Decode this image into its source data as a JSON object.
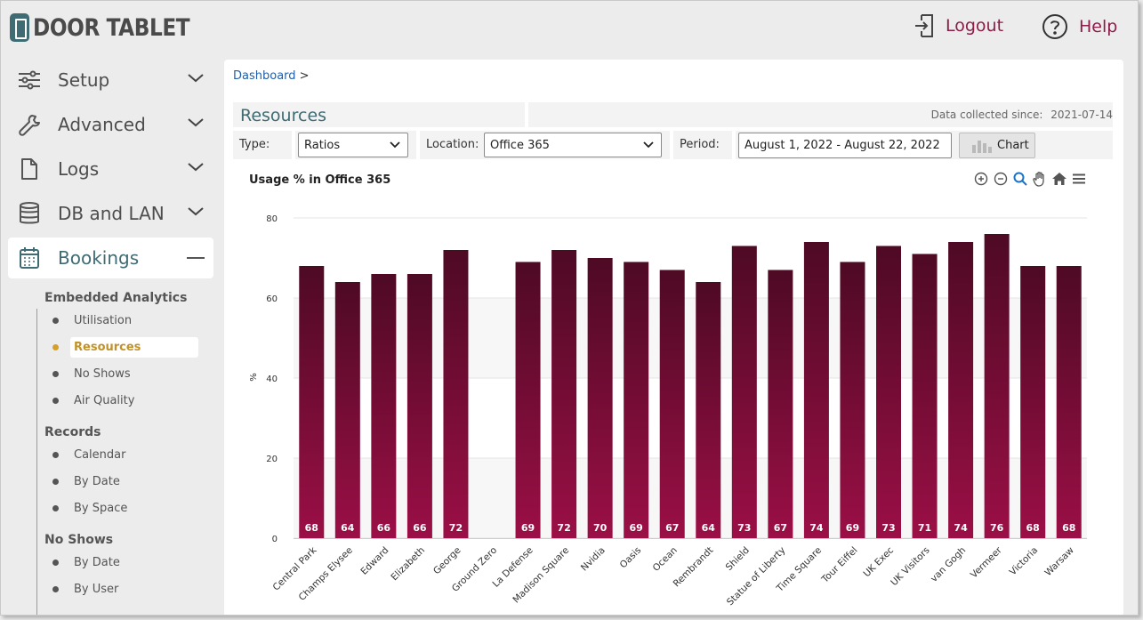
{
  "header": {
    "logo_text": "DOOR TABLET",
    "logout_label": "Logout",
    "help_label": "Help"
  },
  "sidebar": {
    "items": [
      {
        "label": "Setup",
        "icon": "sliders-icon"
      },
      {
        "label": "Advanced",
        "icon": "wrench-icon"
      },
      {
        "label": "Logs",
        "icon": "file-icon"
      },
      {
        "label": "DB and LAN",
        "icon": "database-icon"
      },
      {
        "label": "Bookings",
        "icon": "calendar-icon"
      }
    ],
    "groups": [
      {
        "title": "Embedded Analytics",
        "items": [
          "Utilisation",
          "Resources",
          "No Shows",
          "Air Quality"
        ]
      },
      {
        "title": "Records",
        "items": [
          "Calendar",
          "By Date",
          "By Space"
        ]
      },
      {
        "title": "No Shows",
        "items": [
          "By Date",
          "By User"
        ]
      }
    ],
    "active_item": "Resources"
  },
  "main": {
    "breadcrumb": "Dashboard",
    "breadcrumb_sep": ">",
    "section_title": "Resources",
    "data_collected_label": "Data collected since:",
    "data_collected_value": "2021-07-14",
    "filters": {
      "type_label": "Type:",
      "type_value": "Ratios",
      "location_label": "Location:",
      "location_value": "Office 365",
      "period_label": "Period:",
      "period_value": "August 1, 2022 - August 22, 2022",
      "chart_button": "Chart"
    }
  },
  "colors": {
    "brand": "#3f6b73",
    "accent": "#8b1d48",
    "bar_top": "#4e0a24",
    "bar_bottom": "#9b0f46",
    "active_sub": "#c2922a"
  },
  "chart_data": {
    "type": "bar",
    "title": "Usage % in Office 365",
    "ylabel": "%",
    "ylim": [
      0,
      80
    ],
    "yticks": [
      0,
      20,
      40,
      60,
      80
    ],
    "categories": [
      "Central Park",
      "Champs Elysee",
      "Edward",
      "Elizabeth",
      "George",
      "Ground Zero",
      "La Defense",
      "Madison Square",
      "Nvidia",
      "Oasis",
      "Ocean",
      "Rembrandt",
      "Shield",
      "Statue of Liberty",
      "Time Square",
      "Tour Eiffel",
      "UK Exec",
      "UK Visitors",
      "van Gogh",
      "Vermeer",
      "Victoria",
      "Warsaw"
    ],
    "values": [
      68,
      64,
      66,
      66,
      72,
      null,
      69,
      72,
      70,
      69,
      67,
      64,
      73,
      67,
      74,
      69,
      73,
      71,
      74,
      76,
      68,
      68
    ],
    "grid": true,
    "legend": "none"
  }
}
